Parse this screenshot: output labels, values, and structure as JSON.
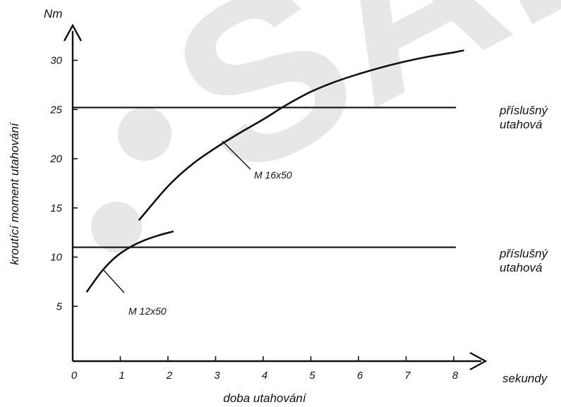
{
  "chart_data": {
    "type": "line",
    "xlabel": "doba utahování",
    "ylabel": "kroutící moment utahování",
    "y_unit": "Nm",
    "x_unit": "sekundy",
    "xlim": [
      0,
      8.5
    ],
    "ylim": [
      0,
      33
    ],
    "x_ticks": [
      "0",
      "1",
      "2",
      "3",
      "4",
      "5",
      "6",
      "7",
      "8"
    ],
    "y_ticks": [
      "5",
      "10",
      "15",
      "20",
      "25",
      "30"
    ],
    "grid": false,
    "series": [
      {
        "name": "M 12x50",
        "x": [
          0.3,
          0.6,
          0.9,
          1.2,
          1.5,
          1.8,
          2.1
        ],
        "y": [
          6.5,
          8.5,
          10.0,
          11.0,
          11.7,
          12.2,
          12.6
        ]
      },
      {
        "name": "M 16x50",
        "x": [
          1.4,
          2.0,
          2.5,
          3.0,
          3.5,
          4.0,
          4.5,
          5.0,
          5.5,
          6.0,
          6.5,
          7.0,
          7.5,
          8.0,
          8.2
        ],
        "y": [
          13.8,
          17.2,
          19.4,
          21.1,
          22.6,
          24.0,
          25.5,
          26.8,
          27.8,
          28.6,
          29.3,
          29.9,
          30.4,
          30.8,
          31.0
        ]
      }
    ],
    "reference_lines": [
      {
        "y": 25.2,
        "label_line1": "příslušný",
        "label_line2": "utahová"
      },
      {
        "y": 11.0,
        "label_line1": "příslušný",
        "label_line2": "utahová"
      }
    ],
    "watermark_text": "SAL"
  }
}
